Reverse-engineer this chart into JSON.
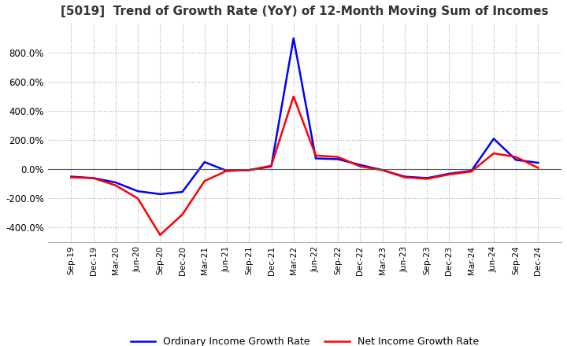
{
  "title": "[5019]  Trend of Growth Rate (YoY) of 12-Month Moving Sum of Incomes",
  "title_fontsize": 11,
  "ylim": [
    -500,
    1000
  ],
  "yticks": [
    -400,
    -200,
    0,
    200,
    400,
    600,
    800
  ],
  "legend_labels": [
    "Ordinary Income Growth Rate",
    "Net Income Growth Rate"
  ],
  "legend_colors": [
    "blue",
    "red"
  ],
  "background_color": "#ffffff",
  "grid_color": "#aaaaaa",
  "x_labels": [
    "Sep-19",
    "Dec-19",
    "Mar-20",
    "Jun-20",
    "Sep-20",
    "Dec-20",
    "Mar-21",
    "Jun-21",
    "Sep-21",
    "Dec-21",
    "Mar-22",
    "Jun-22",
    "Sep-22",
    "Dec-22",
    "Mar-23",
    "Jun-23",
    "Sep-23",
    "Dec-23",
    "Mar-24",
    "Jun-24",
    "Sep-24",
    "Dec-24"
  ],
  "ordinary_income": [
    -50,
    -60,
    -90,
    -150,
    -170,
    -155,
    50,
    -10,
    -5,
    20,
    900,
    75,
    70,
    30,
    -5,
    -50,
    -60,
    -30,
    -10,
    210,
    65,
    45
  ],
  "net_income": [
    -55,
    -60,
    -110,
    -200,
    -450,
    -310,
    -80,
    -10,
    -5,
    25,
    500,
    95,
    85,
    20,
    -5,
    -55,
    -65,
    -35,
    -15,
    110,
    85,
    10
  ]
}
